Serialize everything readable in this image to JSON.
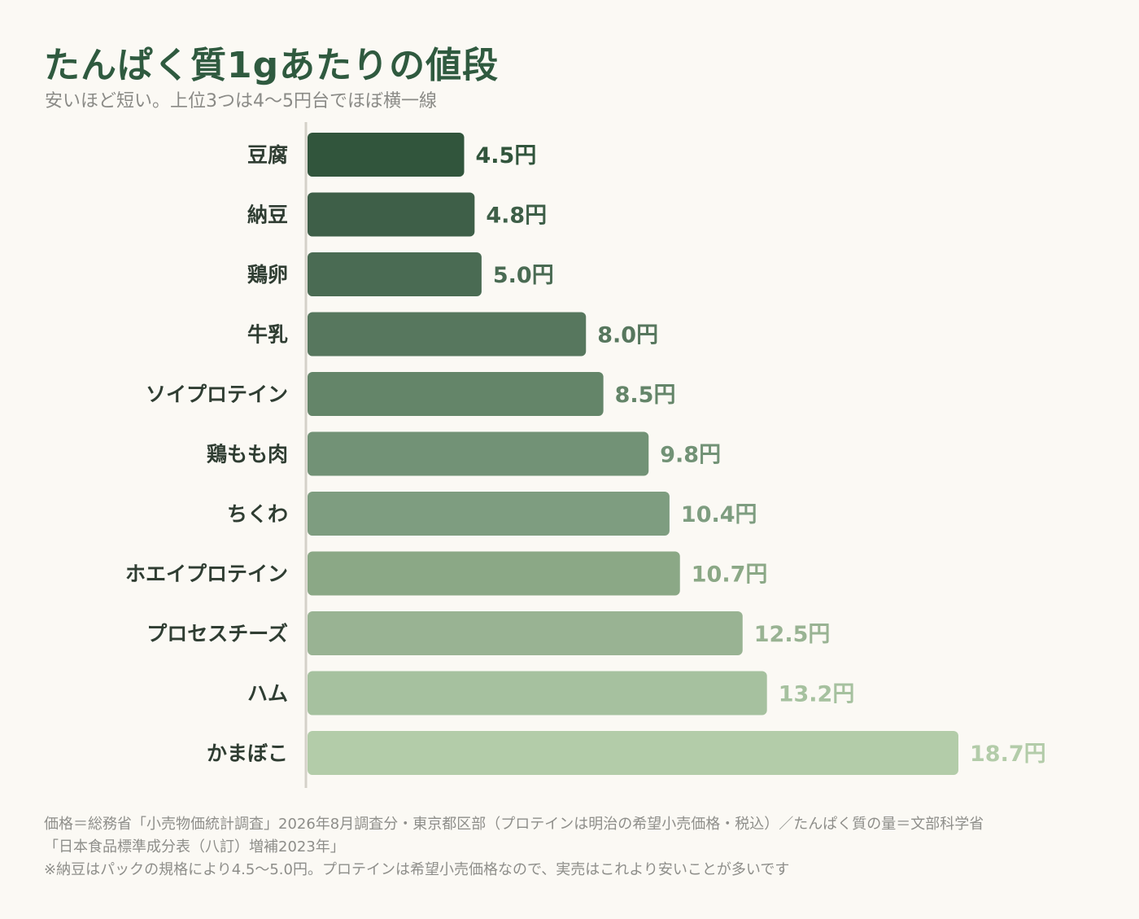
{
  "title": "たんぱく質1gあたりの値段",
  "subtitle": "安いほど短い。上位3つは4〜5円台でほぼ横一線",
  "chart_data": {
    "type": "bar",
    "orientation": "horizontal",
    "categories": [
      "豆腐",
      "納豆",
      "鶏卵",
      "牛乳",
      "ソイプロテイン",
      "鶏もも肉",
      "ちくわ",
      "ホエイプロテイン",
      "プロセスチーズ",
      "ハム",
      "かまぼこ"
    ],
    "values": [
      4.5,
      4.8,
      5.0,
      8.0,
      8.5,
      9.8,
      10.4,
      10.7,
      12.5,
      13.2,
      18.7
    ],
    "value_labels": [
      "4.5円",
      "4.8円",
      "5.0円",
      "8.0円",
      "8.5円",
      "9.8円",
      "10.4円",
      "10.7円",
      "12.5円",
      "13.2円",
      "18.7円"
    ],
    "colors": [
      "#31553c",
      "#3e5f48",
      "#4a6b53",
      "#57775e",
      "#648569",
      "#729276",
      "#7e9d80",
      "#8ba886",
      "#99b393",
      "#a6c19f",
      "#b3cca9"
    ],
    "xlim": [
      0,
      18.7
    ],
    "grid": false,
    "legend": "none"
  },
  "footer": {
    "line1": "価格＝総務省「小売物価統計調査」2026年8月調査分・東京都区部（プロテインは明治の希望小売価格・税込）／たんぱく質の量＝文部科学省",
    "line2": "「日本食品標準成分表（八訂）増補2023年」",
    "line3": "※納豆はパックの規格により4.5〜5.0円。プロテインは希望小売価格なので、実売はこれより安いことが多いです"
  }
}
